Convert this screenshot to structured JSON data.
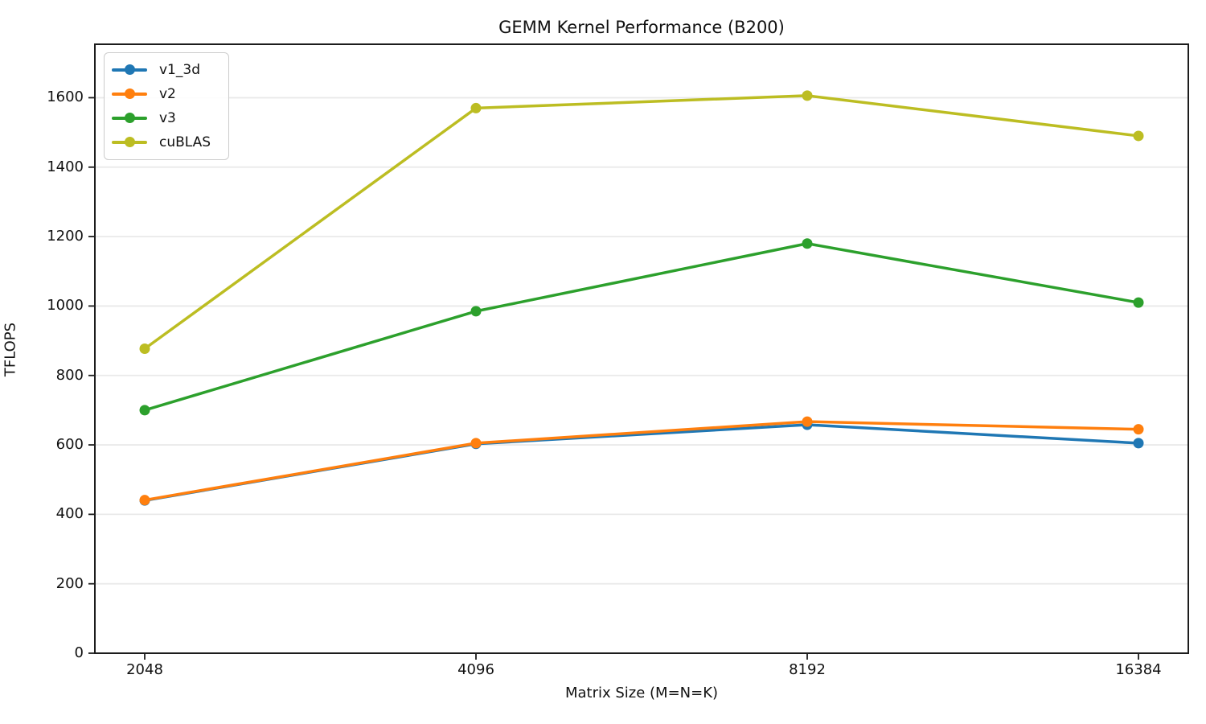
{
  "chart_data": {
    "type": "line",
    "title": "GEMM Kernel Performance (B200)",
    "xlabel": "Matrix Size (M=N=K)",
    "ylabel": "TFLOPS",
    "categories": [
      "2048",
      "4096",
      "8192",
      "16384"
    ],
    "yticks": [
      0,
      200,
      400,
      600,
      800,
      1000,
      1200,
      1400,
      1600
    ],
    "ylim": [
      0,
      1754
    ],
    "grid": "horizontal-only",
    "legend_position": "upper-left",
    "colors": {
      "axis": "#1c1c1c",
      "grid": "#e9e9e9",
      "text": "#111111",
      "legend_border": "#cccccc"
    },
    "series": [
      {
        "name": "v1_3d",
        "color": "#1f77b4",
        "values": [
          440,
          603,
          658,
          605
        ]
      },
      {
        "name": "v2",
        "color": "#ff7f0e",
        "values": [
          441,
          605,
          667,
          645
        ]
      },
      {
        "name": "v3",
        "color": "#2ca02c",
        "values": [
          700,
          985,
          1180,
          1010
        ]
      },
      {
        "name": "cuBLAS",
        "color": "#bcbd22",
        "values": [
          877,
          1570,
          1606,
          1490
        ]
      }
    ]
  }
}
